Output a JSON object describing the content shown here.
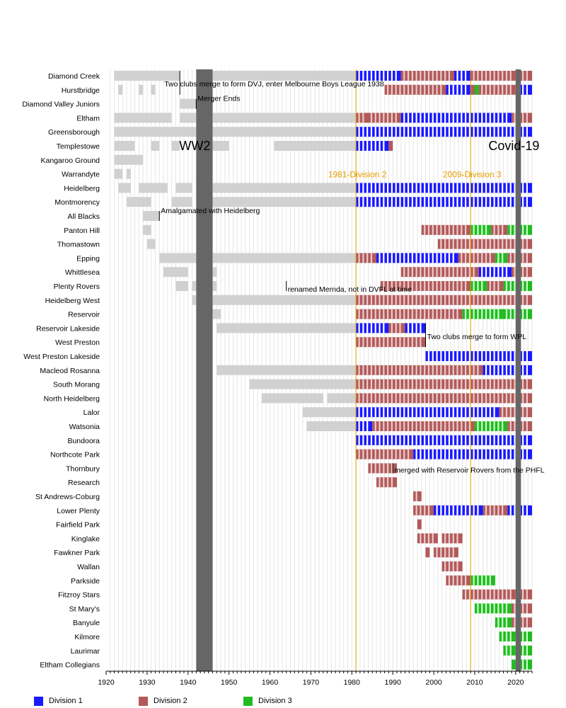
{
  "chart_data": {
    "type": "timeline",
    "title": "",
    "xlabel": "",
    "ylabel": "",
    "xlim": [
      1920,
      2024
    ],
    "x_ticks": [
      1920,
      1930,
      1940,
      1950,
      1960,
      1970,
      1980,
      1990,
      2000,
      2010,
      2020
    ],
    "grid": true,
    "legend_position": "bottom-left",
    "colors": {
      "Division 1": "#1a1aff",
      "Division 2": "#b35959",
      "Division 3": "#22bb22",
      "other": "#cccccc",
      "period": "#666666",
      "marker": "#e6a000"
    },
    "divisions": [
      "Division 1",
      "Division 2",
      "Division 3"
    ],
    "shaded_periods": [
      {
        "label": "WW2",
        "start": 1942,
        "end": 1946
      },
      {
        "label": "Covid-19",
        "start": 2020,
        "end": 2021.3
      }
    ],
    "markers": [
      {
        "label": "1981-Division 2",
        "x": 1981
      },
      {
        "label": "2009-Division 3",
        "x": 2009
      }
    ],
    "clubs": [
      {
        "name": "Diamond Creek",
        "segments": [
          [
            1922,
            1938,
            "other"
          ],
          [
            1946,
            1981,
            "other"
          ],
          [
            1981,
            1992,
            "Division 1"
          ],
          [
            1992,
            2005,
            "Division 2"
          ],
          [
            2005,
            2009,
            "Division 1"
          ],
          [
            2009,
            2020,
            "Division 2"
          ],
          [
            2020,
            2024,
            "Division 2"
          ]
        ]
      },
      {
        "name": "Hurstbridge",
        "segments": [
          [
            1923,
            1924,
            "other"
          ],
          [
            1928,
            1929,
            "other"
          ],
          [
            1931,
            1932,
            "other"
          ],
          [
            1988,
            2003,
            "Division 2"
          ],
          [
            2003,
            2009,
            "Division 1"
          ],
          [
            2009,
            2010,
            "Division 2"
          ],
          [
            2010,
            2011,
            "Division 3"
          ],
          [
            2011,
            2020,
            "Division 2"
          ],
          [
            2021,
            2024,
            "Division 1"
          ]
        ]
      },
      {
        "name": "Diamond Valley Juniors",
        "segments": [
          [
            1938,
            1942,
            "other"
          ]
        ]
      },
      {
        "name": "Eltham",
        "segments": [
          [
            1922,
            1936,
            "other"
          ],
          [
            1938,
            1942,
            "other"
          ],
          [
            1946,
            1981,
            "other"
          ],
          [
            1981,
            1984,
            "Division 2"
          ],
          [
            1984,
            1992,
            "Division 2"
          ],
          [
            1992,
            2019,
            "Division 1"
          ],
          [
            2019,
            2024,
            "Division 2"
          ]
        ]
      },
      {
        "name": "Greensborough",
        "segments": [
          [
            1922,
            1942,
            "other"
          ],
          [
            1946,
            1981,
            "other"
          ],
          [
            1981,
            2024,
            "Division 1"
          ]
        ]
      },
      {
        "name": "Templestowe",
        "segments": [
          [
            1922,
            1927,
            "other"
          ],
          [
            1931,
            1933,
            "other"
          ],
          [
            1936,
            1938,
            "other"
          ],
          [
            1946,
            1950,
            "other"
          ],
          [
            1961,
            1981,
            "other"
          ],
          [
            1981,
            1989,
            "Division 1"
          ],
          [
            1989,
            1990,
            "Division 2"
          ]
        ]
      },
      {
        "name": "Kangaroo Ground",
        "segments": [
          [
            1922,
            1929,
            "other"
          ]
        ]
      },
      {
        "name": "Warrandyte",
        "segments": [
          [
            1922,
            1924,
            "other"
          ],
          [
            1925,
            1926,
            "other"
          ]
        ]
      },
      {
        "name": "Heidelberg",
        "segments": [
          [
            1923,
            1926,
            "other"
          ],
          [
            1928,
            1935,
            "other"
          ],
          [
            1937,
            1941,
            "other"
          ],
          [
            1946,
            1981,
            "other"
          ],
          [
            1981,
            2024,
            "Division 1"
          ]
        ]
      },
      {
        "name": "Montmorency",
        "segments": [
          [
            1925,
            1931,
            "other"
          ],
          [
            1936,
            1941,
            "other"
          ],
          [
            1946,
            1981,
            "other"
          ],
          [
            1981,
            2024,
            "Division 1"
          ]
        ]
      },
      {
        "name": "All Blacks",
        "segments": [
          [
            1929,
            1933,
            "other"
          ]
        ]
      },
      {
        "name": "Panton Hill",
        "segments": [
          [
            1929,
            1931,
            "other"
          ],
          [
            1997,
            2009,
            "Division 2"
          ],
          [
            2009,
            2014,
            "Division 3"
          ],
          [
            2014,
            2018,
            "Division 2"
          ],
          [
            2018,
            2024,
            "Division 3"
          ]
        ]
      },
      {
        "name": "Thomastown",
        "segments": [
          [
            1930,
            1932,
            "other"
          ],
          [
            2001,
            2024,
            "Division 2"
          ]
        ]
      },
      {
        "name": "Epping",
        "segments": [
          [
            1933,
            1942,
            "other"
          ],
          [
            1946,
            1981,
            "other"
          ],
          [
            1981,
            1986,
            "Division 2"
          ],
          [
            1986,
            2006,
            "Division 1"
          ],
          [
            2006,
            2015,
            "Division 2"
          ],
          [
            2015,
            2018,
            "Division 3"
          ],
          [
            2018,
            2024,
            "Division 2"
          ]
        ]
      },
      {
        "name": "Whittlesea",
        "segments": [
          [
            1934,
            1940,
            "other"
          ],
          [
            1945,
            1947,
            "other"
          ],
          [
            1992,
            2011,
            "Division 2"
          ],
          [
            2011,
            2019,
            "Division 1"
          ],
          [
            2019,
            2024,
            "Division 2"
          ]
        ]
      },
      {
        "name": "Plenty Rovers",
        "segments": [
          [
            1937,
            1940,
            "other"
          ],
          [
            1941,
            1942,
            "other"
          ],
          [
            1946,
            1947,
            "other"
          ],
          [
            1987,
            2009,
            "Division 2"
          ],
          [
            2009,
            2013,
            "Division 3"
          ],
          [
            2013,
            2017,
            "Division 2"
          ],
          [
            2017,
            2024,
            "Division 3"
          ]
        ]
      },
      {
        "name": "Heidelberg West",
        "segments": [
          [
            1941,
            1942,
            "other"
          ],
          [
            1946,
            1981,
            "other"
          ],
          [
            1981,
            2024,
            "Division 2"
          ]
        ]
      },
      {
        "name": "Reservoir",
        "segments": [
          [
            1946,
            1948,
            "other"
          ],
          [
            1981,
            2007,
            "Division 2"
          ],
          [
            2007,
            2017,
            "Division 3"
          ],
          [
            2017,
            2024,
            "Division 3"
          ]
        ]
      },
      {
        "name": "Reservoir Lakeside",
        "segments": [
          [
            1947,
            1981,
            "other"
          ],
          [
            1981,
            1989,
            "Division 1"
          ],
          [
            1989,
            1993,
            "Division 2"
          ],
          [
            1993,
            1998,
            "Division 1"
          ]
        ]
      },
      {
        "name": "West Preston",
        "segments": [
          [
            1981,
            1998,
            "Division 2"
          ]
        ]
      },
      {
        "name": "West Preston Lakeside",
        "segments": [
          [
            1998,
            2024,
            "Division 1"
          ]
        ]
      },
      {
        "name": "Macleod Rosanna",
        "segments": [
          [
            1947,
            1981,
            "other"
          ],
          [
            1981,
            2012,
            "Division 2"
          ],
          [
            2012,
            2024,
            "Division 1"
          ]
        ]
      },
      {
        "name": "South Morang",
        "segments": [
          [
            1955,
            1981,
            "other"
          ],
          [
            1981,
            2024,
            "Division 2"
          ]
        ]
      },
      {
        "name": "North Heidelberg",
        "segments": [
          [
            1958,
            1973,
            "other"
          ],
          [
            1974,
            1981,
            "other"
          ],
          [
            1981,
            2024,
            "Division 2"
          ]
        ]
      },
      {
        "name": "Lalor",
        "segments": [
          [
            1968,
            1981,
            "other"
          ],
          [
            1981,
            2016,
            "Division 1"
          ],
          [
            2016,
            2024,
            "Division 2"
          ]
        ]
      },
      {
        "name": "Watsonia",
        "segments": [
          [
            1969,
            1981,
            "other"
          ],
          [
            1981,
            1985,
            "Division 1"
          ],
          [
            1985,
            2010,
            "Division 2"
          ],
          [
            2010,
            2018,
            "Division 3"
          ],
          [
            2018,
            2024,
            "Division 2"
          ]
        ]
      },
      {
        "name": "Bundoora",
        "segments": [
          [
            1981,
            2024,
            "Division 1"
          ]
        ]
      },
      {
        "name": "Northcote Park",
        "segments": [
          [
            1981,
            1995,
            "Division 2"
          ],
          [
            1995,
            2024,
            "Division 1"
          ]
        ]
      },
      {
        "name": "Thornbury",
        "segments": [
          [
            1984,
            1991,
            "Division 2"
          ]
        ]
      },
      {
        "name": "Research",
        "segments": [
          [
            1986,
            1991,
            "Division 2"
          ]
        ]
      },
      {
        "name": "St Andrews-Coburg",
        "segments": [
          [
            1995,
            1997,
            "Division 2"
          ]
        ]
      },
      {
        "name": "Lower Plenty",
        "segments": [
          [
            1995,
            2000,
            "Division 2"
          ],
          [
            2000,
            2012,
            "Division 1"
          ],
          [
            2012,
            2018,
            "Division 2"
          ],
          [
            2018,
            2024,
            "Division 1"
          ]
        ]
      },
      {
        "name": "Fairfield Park",
        "segments": [
          [
            1996,
            1997,
            "Division 2"
          ]
        ]
      },
      {
        "name": "Kinglake",
        "segments": [
          [
            1996,
            2001,
            "Division 2"
          ],
          [
            2002,
            2007,
            "Division 2"
          ]
        ]
      },
      {
        "name": "Fawkner Park",
        "segments": [
          [
            1998,
            1999,
            "Division 2"
          ],
          [
            2000,
            2006,
            "Division 2"
          ]
        ]
      },
      {
        "name": "Wallan",
        "segments": [
          [
            2002,
            2007,
            "Division 2"
          ]
        ]
      },
      {
        "name": "Parkside",
        "segments": [
          [
            2003,
            2009,
            "Division 2"
          ],
          [
            2009,
            2015,
            "Division 3"
          ]
        ]
      },
      {
        "name": "Fitzroy Stars",
        "segments": [
          [
            2007,
            2020,
            "Division 2"
          ],
          [
            2021,
            2024,
            "Division 2"
          ]
        ]
      },
      {
        "name": "St Mary's",
        "segments": [
          [
            2010,
            2019,
            "Division 3"
          ],
          [
            2019,
            2024,
            "Division 2"
          ]
        ]
      },
      {
        "name": "Banyule",
        "segments": [
          [
            2015,
            2019,
            "Division 3"
          ],
          [
            2019,
            2024,
            "Division 2"
          ]
        ]
      },
      {
        "name": "Kilmore",
        "segments": [
          [
            2016,
            2020,
            "Division 3"
          ],
          [
            2021,
            2024,
            "Division 3"
          ]
        ]
      },
      {
        "name": "Laurimar",
        "segments": [
          [
            2017,
            2020,
            "Division 3"
          ],
          [
            2021,
            2024,
            "Division 3"
          ]
        ]
      },
      {
        "name": "Eltham Collegians",
        "segments": [
          [
            2019,
            2020,
            "Division 3"
          ],
          [
            2021,
            2024,
            "Division 3"
          ]
        ]
      }
    ],
    "annotations": [
      {
        "text": "Two clubs merge to form DVJ, enter Melbourne Boys League 1938",
        "x": 1938,
        "row": 0,
        "line_rows": [
          0,
          1
        ],
        "text_row": 1
      },
      {
        "text": "Merger Ends",
        "x": 1942,
        "row": 2,
        "line_rows": [
          2,
          2
        ],
        "text_row": 2
      },
      {
        "text": "Amalgamated with Heidelberg",
        "x": 1933,
        "row": 10,
        "line_rows": [
          10,
          10
        ],
        "text_row": 10
      },
      {
        "text": "renamed Mernda, not in DVFL at time",
        "x": 1964,
        "row": 15,
        "line_rows": [
          15,
          15
        ],
        "text_row": 15.6
      },
      {
        "text": "Two clubs merge to form WPL",
        "x": 1998,
        "row": 18,
        "line_rows": [
          18,
          19
        ],
        "text_row": 19
      },
      {
        "text": "merged with Reservoir Rovers from the PHFL",
        "x": 1990,
        "row": 28,
        "line_rows": [
          28,
          28
        ],
        "text_row": 28.5
      }
    ]
  }
}
